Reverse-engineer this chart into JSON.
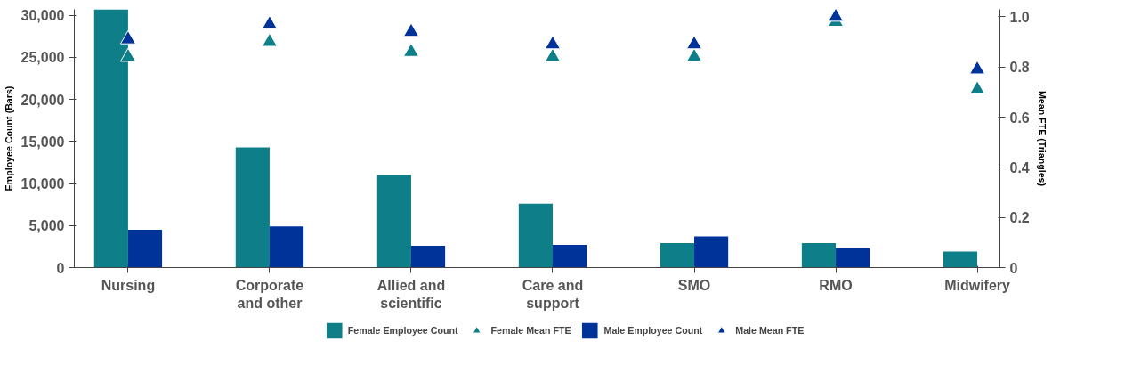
{
  "chart_data": {
    "type": "bar",
    "ylabel": "Employee Count (Bars)",
    "y2label": "Mean FTE (Triangles)",
    "categories": [
      "Nursing",
      "Corporate and other",
      "Allied and scientific",
      "Care and support",
      "SMO",
      "RMO",
      "Midwifery"
    ],
    "series": [
      {
        "name": "Female Employee Count",
        "color": "#0e7f88",
        "values": [
          30700,
          14300,
          11000,
          7600,
          2900,
          2900,
          1900
        ]
      },
      {
        "name": "Female Mean FTE",
        "type": "scatter",
        "axis": "y2",
        "marker": "triangle",
        "color": "#0e7f88",
        "values": [
          0.84,
          0.9,
          0.86,
          0.84,
          0.84,
          0.98,
          0.71
        ]
      },
      {
        "name": "Male Employee Count",
        "color": "#003399",
        "values": [
          4500,
          4900,
          2600,
          2700,
          3700,
          2300,
          null
        ]
      },
      {
        "name": "Male Mean FTE",
        "type": "scatter",
        "axis": "y2",
        "marker": "triangle",
        "color": "#003399",
        "values": [
          0.91,
          0.97,
          0.94,
          0.89,
          0.89,
          1.0,
          0.79
        ]
      }
    ],
    "ylim": [
      0,
      30700
    ],
    "yticks": [
      0,
      {
        "value": 5000,
        "label": "5,000"
      },
      {
        "value": 10000,
        "label": "10,000"
      },
      {
        "value": 15000,
        "label": "15,000"
      },
      {
        "value": 20000,
        "label": "20,000"
      },
      {
        "value": 25000,
        "label": "25,000"
      },
      {
        "value": 30000,
        "label": "30,000"
      }
    ],
    "y2lim": [
      0,
      1.03
    ],
    "y2ticks": [
      0,
      0.2,
      0.4,
      0.6,
      0.8,
      {
        "value": 1.0,
        "label": "1.0"
      }
    ],
    "grid": false,
    "legend": "bottom"
  }
}
